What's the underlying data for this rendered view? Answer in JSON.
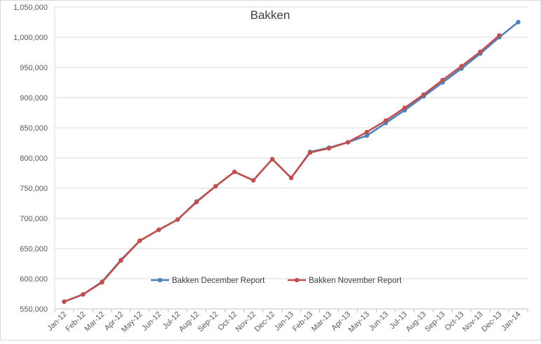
{
  "chart_data": {
    "type": "line",
    "title": "Bakken",
    "xlabel": "",
    "ylabel": "",
    "ylim": [
      550000,
      1050000
    ],
    "yticks": [
      550000,
      600000,
      650000,
      700000,
      750000,
      800000,
      850000,
      900000,
      950000,
      1000000,
      1050000
    ],
    "ytick_labels": [
      "550,000",
      "600,000",
      "650,000",
      "700,000",
      "750,000",
      "800,000",
      "850,000",
      "900,000",
      "950,000",
      "1,000,000",
      "1,050,000"
    ],
    "categories": [
      "Jan-12",
      "Feb-12",
      "Mar-12",
      "Apr-12",
      "May-12",
      "Jun-12",
      "Jul-12",
      "Aug-12",
      "Sep-12",
      "Oct-12",
      "Nov-12",
      "Dec-12",
      "Jan-13",
      "Feb-13",
      "Mar-13",
      "Apr-13",
      "May-13",
      "Jun-13",
      "Jul-13",
      "Aug-13",
      "Sep-13",
      "Oct-13",
      "Nov-13",
      "Dec-13",
      "Jan-14"
    ],
    "grid": true,
    "legend_position": "bottom-center",
    "series": [
      {
        "name": "Bakken  December Report",
        "color": "#4f81bd",
        "values": [
          562000,
          574000,
          595000,
          631000,
          663000,
          681000,
          698000,
          728000,
          753000,
          777000,
          763000,
          798000,
          767000,
          810000,
          817000,
          826000,
          837000,
          858000,
          879000,
          902000,
          925000,
          948000,
          973000,
          1000000,
          1025000
        ]
      },
      {
        "name": "Bakken November Report",
        "color": "#c0504d",
        "values": [
          562000,
          574000,
          594000,
          630000,
          663000,
          681000,
          698000,
          727000,
          753000,
          777000,
          763000,
          798000,
          767000,
          809000,
          816000,
          826000,
          843000,
          862000,
          883000,
          905000,
          929000,
          952000,
          976000,
          1003000,
          null
        ]
      }
    ]
  }
}
